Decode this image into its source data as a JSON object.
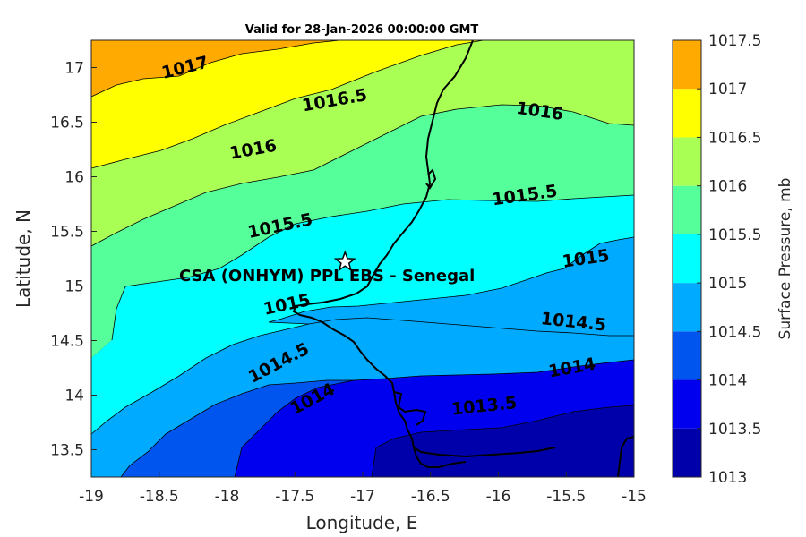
{
  "title": "Valid for 28-Jan-2026 00:00:00 GMT",
  "colors": {
    "1013": "#0000aa",
    "1013.5": "#0000ee",
    "1014": "#0055ee",
    "1014.5": "#00aaff",
    "1015": "#00ffff",
    "1015.5": "#55ff99",
    "1016": "#aaff55",
    "1016.5": "#ffff00",
    "1017": "#ffaa00",
    "1017.5": "#ff5500"
  },
  "chart_data": {
    "type": "contour-map",
    "title": "Valid for 28-Jan-2026 00:00:00 GMT",
    "xlabel": "Longitude, E",
    "ylabel": "Latitude, N",
    "xlim": [
      -19,
      -15
    ],
    "ylim": [
      13.25,
      17.25
    ],
    "xticks": [
      "-19",
      "-18.5",
      "-18",
      "-17.5",
      "-17",
      "-16.5",
      "-16",
      "-15.5",
      "-15"
    ],
    "yticks": [
      "13.5",
      "14",
      "14.5",
      "15",
      "15.5",
      "16",
      "16.5",
      "17"
    ],
    "colorbar": {
      "label": "Surface Pressure, mb",
      "levels": [
        "1013",
        "1013.5",
        "1014",
        "1014.5",
        "1015",
        "1015.5",
        "1016",
        "1016.5",
        "1017",
        "1017.5"
      ]
    },
    "contour_labels": [
      {
        "text": "1017",
        "lon": -18.3,
        "lat": 16.95
      },
      {
        "text": "1016.5",
        "lon": -17.2,
        "lat": 16.65
      },
      {
        "text": "1016",
        "lon": -15.7,
        "lat": 16.55
      },
      {
        "text": "1016",
        "lon": -17.8,
        "lat": 16.2
      },
      {
        "text": "1015.5",
        "lon": -15.8,
        "lat": 15.78
      },
      {
        "text": "1015.5",
        "lon": -17.6,
        "lat": 15.5
      },
      {
        "text": "1015",
        "lon": -15.35,
        "lat": 15.2
      },
      {
        "text": "1015",
        "lon": -17.55,
        "lat": 14.78
      },
      {
        "text": "1014.5",
        "lon": -15.45,
        "lat": 14.62
      },
      {
        "text": "1014.5",
        "lon": -17.6,
        "lat": 14.25
      },
      {
        "text": "1014",
        "lon": -15.45,
        "lat": 14.2
      },
      {
        "text": "1014",
        "lon": -17.35,
        "lat": 13.92
      },
      {
        "text": "1013.5",
        "lon": -16.1,
        "lat": 13.85
      }
    ],
    "station": {
      "name": "CSA (ONHYM) PPL EBS  - Senegal",
      "lon": -17.13,
      "lat": 15.22,
      "marker": "star"
    }
  }
}
